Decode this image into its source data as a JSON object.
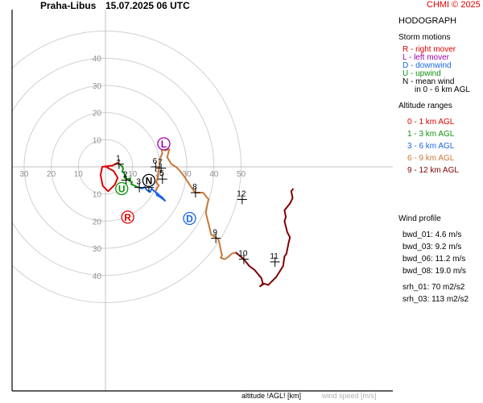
{
  "header": {
    "station": "Praha-Libus",
    "datetime": "15.07.2025 06 UTC",
    "copyright": "CHMI © 2025"
  },
  "legend": {
    "title": "HODOGRAPH",
    "storm_title": "Storm motions",
    "storm": [
      {
        "code": "R",
        "text": "R - right mover",
        "color": "#e00000"
      },
      {
        "code": "L",
        "text": "L - left mover",
        "color": "#9900aa"
      },
      {
        "code": "D",
        "text": "D - downwind",
        "color": "#1a66e6"
      },
      {
        "code": "U",
        "text": "U - upwind",
        "color": "#109010"
      },
      {
        "code": "N",
        "text": "N - mean wind",
        "text2": "in 0 - 6 km AGL",
        "color": "#000000"
      }
    ],
    "alt_title": "Altitude ranges",
    "alt": [
      {
        "text": "0 - 1 km AGL",
        "color": "#e00000"
      },
      {
        "text": "1 - 3 km AGL",
        "color": "#109010"
      },
      {
        "text": "3 - 6 km AGL",
        "color": "#1a66e6"
      },
      {
        "text": "6 - 9 km AGL",
        "color": "#c87838"
      },
      {
        "text": "9 - 12 km AGL",
        "color": "#800000"
      }
    ],
    "wp_title": "Wind profile",
    "wp": [
      "bwd_01: 4.6 m/s",
      "bwd_03: 9.2 m/s",
      "bwd_06: 11.2 m/s",
      "bwd_08: 19.0 m/s",
      "srh_01: 70 m2/s2",
      "srh_03: 113 m2/s2"
    ]
  },
  "footer": {
    "altitude_label": "altitude !AGL! [km]",
    "speed_label": "wind speed [m/s]"
  },
  "chart_data": {
    "type": "hodograph",
    "axis_ticks_x": [
      10,
      20,
      30,
      40,
      50
    ],
    "axis_ticks_y": [
      10,
      20,
      30,
      40
    ],
    "rings": [
      10,
      20,
      30,
      40,
      50
    ],
    "grid": true,
    "segments": [
      {
        "range": "0 - 1 km AGL",
        "color": "#e00000",
        "points": [
          [
            0.2,
            0
          ],
          [
            3,
            1.5
          ],
          [
            4.5,
            4
          ],
          [
            3.5,
            6.5
          ],
          [
            1,
            9
          ],
          [
            -1,
            7
          ],
          [
            -1.8,
            3
          ],
          [
            -1.2,
            0
          ],
          [
            0.5,
            -0.2
          ],
          [
            2.8,
            -0.5
          ],
          [
            4.5,
            -1.5
          ],
          [
            5,
            -1
          ]
        ]
      },
      {
        "range": "1 - 3 km AGL",
        "color": "#109010",
        "points": [
          [
            5,
            -1
          ],
          [
            6.2,
            -0.2
          ],
          [
            6.5,
            0.8
          ],
          [
            6.2,
            1.8
          ],
          [
            6.8,
            2.2
          ],
          [
            7.2,
            3
          ],
          [
            7,
            4
          ],
          [
            8,
            4.5
          ],
          [
            9.2,
            4.2
          ],
          [
            8.8,
            5.2
          ],
          [
            9.8,
            5.6
          ],
          [
            9.5,
            6.4
          ],
          [
            10.5,
            6.8
          ],
          [
            11.5,
            7.4
          ],
          [
            12.5,
            7.6
          ]
        ]
      },
      {
        "range": "3 - 6 km AGL",
        "color": "#1a66e6",
        "points": [
          [
            12.5,
            7.6
          ],
          [
            13.5,
            8
          ],
          [
            14.5,
            7.4
          ],
          [
            15.2,
            8.5
          ],
          [
            16.5,
            9.3
          ],
          [
            17,
            8
          ],
          [
            18,
            9
          ],
          [
            19.2,
            9.8
          ],
          [
            20,
            10.6
          ],
          [
            21,
            11.3
          ],
          [
            22,
            12.5
          ],
          [
            20,
            11
          ],
          [
            19,
            10.5
          ],
          [
            18.5,
            9
          ]
        ]
      },
      {
        "range": "6 - 9 km AGL",
        "color": "#c87838",
        "points": [
          [
            18.5,
            9
          ],
          [
            19.2,
            7.5
          ],
          [
            19.7,
            6.8
          ],
          [
            18.7,
            5.8
          ],
          [
            19.2,
            4
          ],
          [
            19.8,
            0
          ],
          [
            20.1,
            -3
          ],
          [
            21,
            -5
          ],
          [
            20.5,
            -7
          ],
          [
            22,
            -6
          ],
          [
            23.5,
            -6.5
          ],
          [
            22.8,
            -3.5
          ],
          [
            24.3,
            -1
          ],
          [
            26,
            0
          ],
          [
            27.5,
            1.5
          ],
          [
            29,
            3.5
          ],
          [
            33,
            9.5
          ],
          [
            36,
            9.5
          ],
          [
            38,
            12
          ],
          [
            37.5,
            14
          ],
          [
            37,
            17
          ],
          [
            38,
            21
          ],
          [
            39,
            25
          ],
          [
            40.7,
            26
          ],
          [
            41.5,
            26.5
          ],
          [
            42,
            28
          ],
          [
            42.5,
            30.5
          ],
          [
            42.8,
            32
          ],
          [
            43,
            32.5
          ],
          [
            42.5,
            33.5
          ],
          [
            44,
            34
          ],
          [
            45.5,
            33
          ],
          [
            46.5,
            32
          ],
          [
            48,
            31.5
          ]
        ]
      },
      {
        "range": "9 - 12 km AGL",
        "color": "#800000",
        "points": [
          [
            48,
            31.5
          ],
          [
            51,
            34
          ],
          [
            53,
            36.5
          ],
          [
            55,
            38
          ],
          [
            57.5,
            41
          ],
          [
            58,
            43
          ],
          [
            57,
            44
          ],
          [
            58.5,
            43
          ],
          [
            60,
            43.5
          ],
          [
            62,
            41.5
          ],
          [
            63,
            40.5
          ],
          [
            65.5,
            36.5
          ],
          [
            66,
            33
          ],
          [
            66.7,
            32
          ],
          [
            67.5,
            28
          ],
          [
            68,
            26
          ],
          [
            67,
            24
          ],
          [
            66.5,
            22
          ],
          [
            66,
            20
          ],
          [
            66.5,
            18.5
          ],
          [
            66,
            16
          ],
          [
            68,
            13.5
          ],
          [
            69,
            11.5
          ],
          [
            68.5,
            9
          ],
          [
            69.3,
            8
          ]
        ]
      }
    ],
    "height_marks": [
      {
        "label": "1",
        "x": 5,
        "y": -1
      },
      {
        "label": "2",
        "x": 7.6,
        "y": 4.9
      },
      {
        "label": "3",
        "x": 12.5,
        "y": 7.6
      },
      {
        "label": "4",
        "x": 16,
        "y": 7.6
      },
      {
        "label": "5",
        "x": 21,
        "y": 4.5
      },
      {
        "label": "6",
        "x": 18.5,
        "y": 0
      },
      {
        "label": "7",
        "x": 20.5,
        "y": 0.5
      },
      {
        "label": "8",
        "x": 33.2,
        "y": 9.5
      },
      {
        "label": "9",
        "x": 40.7,
        "y": 26.3
      },
      {
        "label": "10",
        "x": 51,
        "y": 34
      },
      {
        "label": "11",
        "x": 62.5,
        "y": 35
      },
      {
        "label": "12",
        "x": 50.4,
        "y": 12
      }
    ],
    "storm_markers": [
      {
        "code": "R",
        "x": 8.2,
        "y": 18.5,
        "color": "#e00000"
      },
      {
        "code": "L",
        "x": 21.5,
        "y": -8.5,
        "color": "#9900aa"
      },
      {
        "code": "D",
        "x": 31,
        "y": 19
      },
      {
        "code": "U",
        "x": 6,
        "y": 8
      },
      {
        "code": "N",
        "x": 16,
        "y": 5
      }
    ]
  }
}
